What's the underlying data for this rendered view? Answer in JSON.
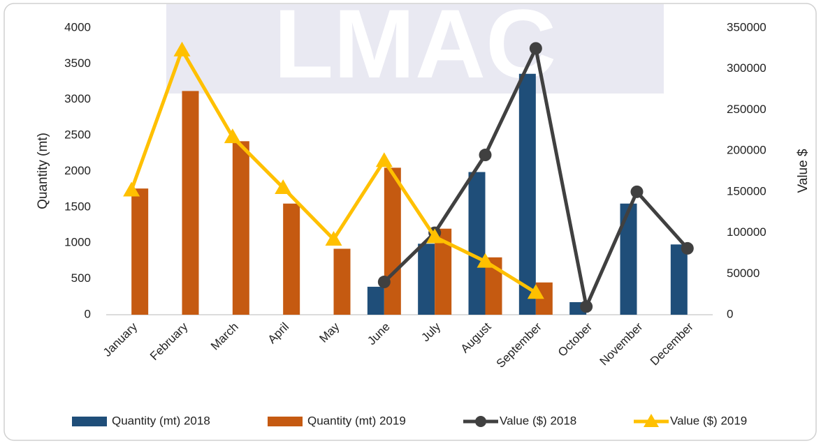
{
  "chart_data": {
    "type": "bar-line",
    "watermark": "LMAC",
    "y_label": "Quantity (mt)",
    "y2_label": "Value $",
    "categories": [
      "January",
      "February",
      "March",
      "April",
      "May",
      "June",
      "July",
      "August",
      "September",
      "October",
      "November",
      "December"
    ],
    "series": [
      {
        "name": "Quantity (mt) 2018",
        "type": "bar",
        "color": "#1f4e79",
        "values": [
          null,
          null,
          null,
          null,
          null,
          390,
          990,
          1990,
          3360,
          175,
          1550,
          980
        ]
      },
      {
        "name": "Quantity (mt) 2019",
        "type": "bar",
        "color": "#c55a11",
        "values": [
          1760,
          3120,
          2420,
          1550,
          920,
          2050,
          1200,
          800,
          450,
          null,
          null,
          null
        ]
      },
      {
        "name": "Value ($) 2018",
        "type": "line",
        "axis": "y2",
        "marker": "circle",
        "color": "#404040",
        "values": [
          null,
          null,
          null,
          null,
          null,
          40000,
          100000,
          195000,
          325000,
          10000,
          150000,
          81000
        ]
      },
      {
        "name": "Value ($) 2019",
        "type": "line",
        "axis": "y2",
        "marker": "triangle",
        "color": "#ffc000",
        "values": [
          152000,
          323000,
          217000,
          155000,
          92000,
          188000,
          95000,
          65000,
          27000,
          null,
          null,
          null
        ]
      }
    ],
    "ylim": [
      0,
      4000
    ],
    "yticks": [
      0,
      500,
      1000,
      1500,
      2000,
      2500,
      3000,
      3500,
      4000
    ],
    "y2lim": [
      0,
      350000
    ],
    "y2ticks": [
      0,
      50000,
      100000,
      150000,
      200000,
      250000,
      300000,
      350000
    ],
    "grid": false,
    "legend": "bottom"
  }
}
